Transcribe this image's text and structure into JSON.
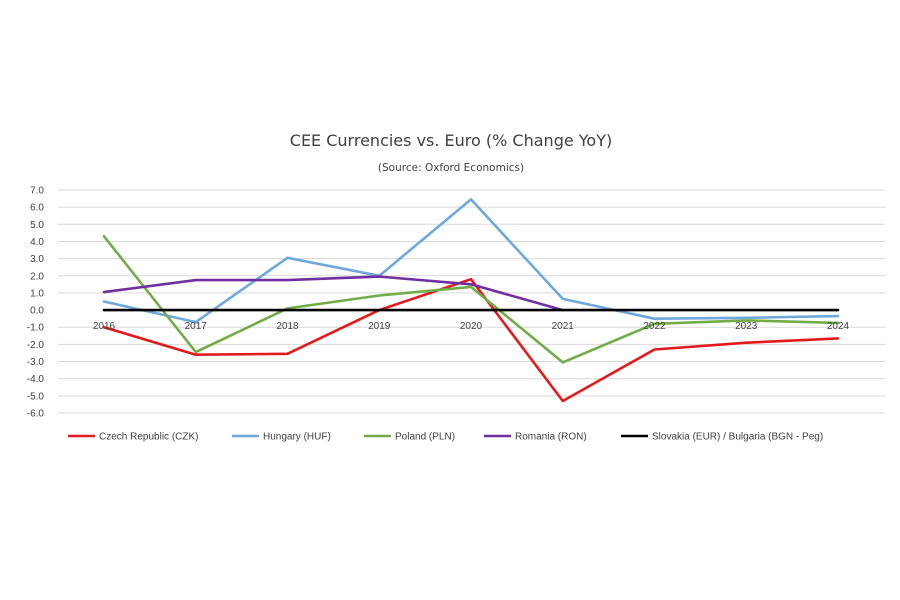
{
  "chart_data": {
    "type": "line",
    "title": "CEE Currencies vs. Euro (% Change YoY)",
    "subtitle": "(Source: Oxford Economics)",
    "categories": [
      "2016",
      "2017",
      "2018",
      "2019",
      "2020",
      "2021",
      "2022",
      "2023",
      "2024"
    ],
    "ylim": [
      -6,
      7
    ],
    "yticks": [
      "7.0",
      "6.0",
      "5.0",
      "4.0",
      "3.0",
      "2.0",
      "1.0",
      "0.0",
      "-1.0",
      "-2.0",
      "-3.0",
      "-4.0",
      "-5.0",
      "-6.0"
    ],
    "ytick_values": [
      7,
      6,
      5,
      4,
      3,
      2,
      1,
      0,
      -1,
      -2,
      -3,
      -4,
      -5,
      -6
    ],
    "grid": true,
    "legend_position": "bottom",
    "series": [
      {
        "name": "Czech Republic (CZK)",
        "color": "#e31a1c",
        "values": [
          -1.0,
          -2.6,
          -2.55,
          0.0,
          1.8,
          -5.3,
          -2.3,
          -1.9,
          -1.65
        ]
      },
      {
        "name": "Hungary (HUF)",
        "color": "#6fa8dc",
        "values": [
          0.5,
          -0.7,
          3.05,
          2.0,
          6.45,
          0.65,
          -0.5,
          -0.45,
          -0.35
        ]
      },
      {
        "name": "Poland (PLN)",
        "color": "#70ad47",
        "values": [
          4.3,
          -2.45,
          0.1,
          0.85,
          1.35,
          -3.05,
          -0.8,
          -0.6,
          -0.75
        ]
      },
      {
        "name": "Romania (RON)",
        "color": "#7030a0",
        "values": [
          1.05,
          1.75,
          1.75,
          1.95,
          1.5,
          0.0,
          null,
          null,
          null
        ]
      },
      {
        "name": "Slovakia (EUR) / Bulgaria (BGN - Peg)",
        "color": "#000000",
        "values": [
          0,
          0,
          0,
          0,
          0,
          0,
          0,
          0,
          0
        ]
      }
    ]
  }
}
